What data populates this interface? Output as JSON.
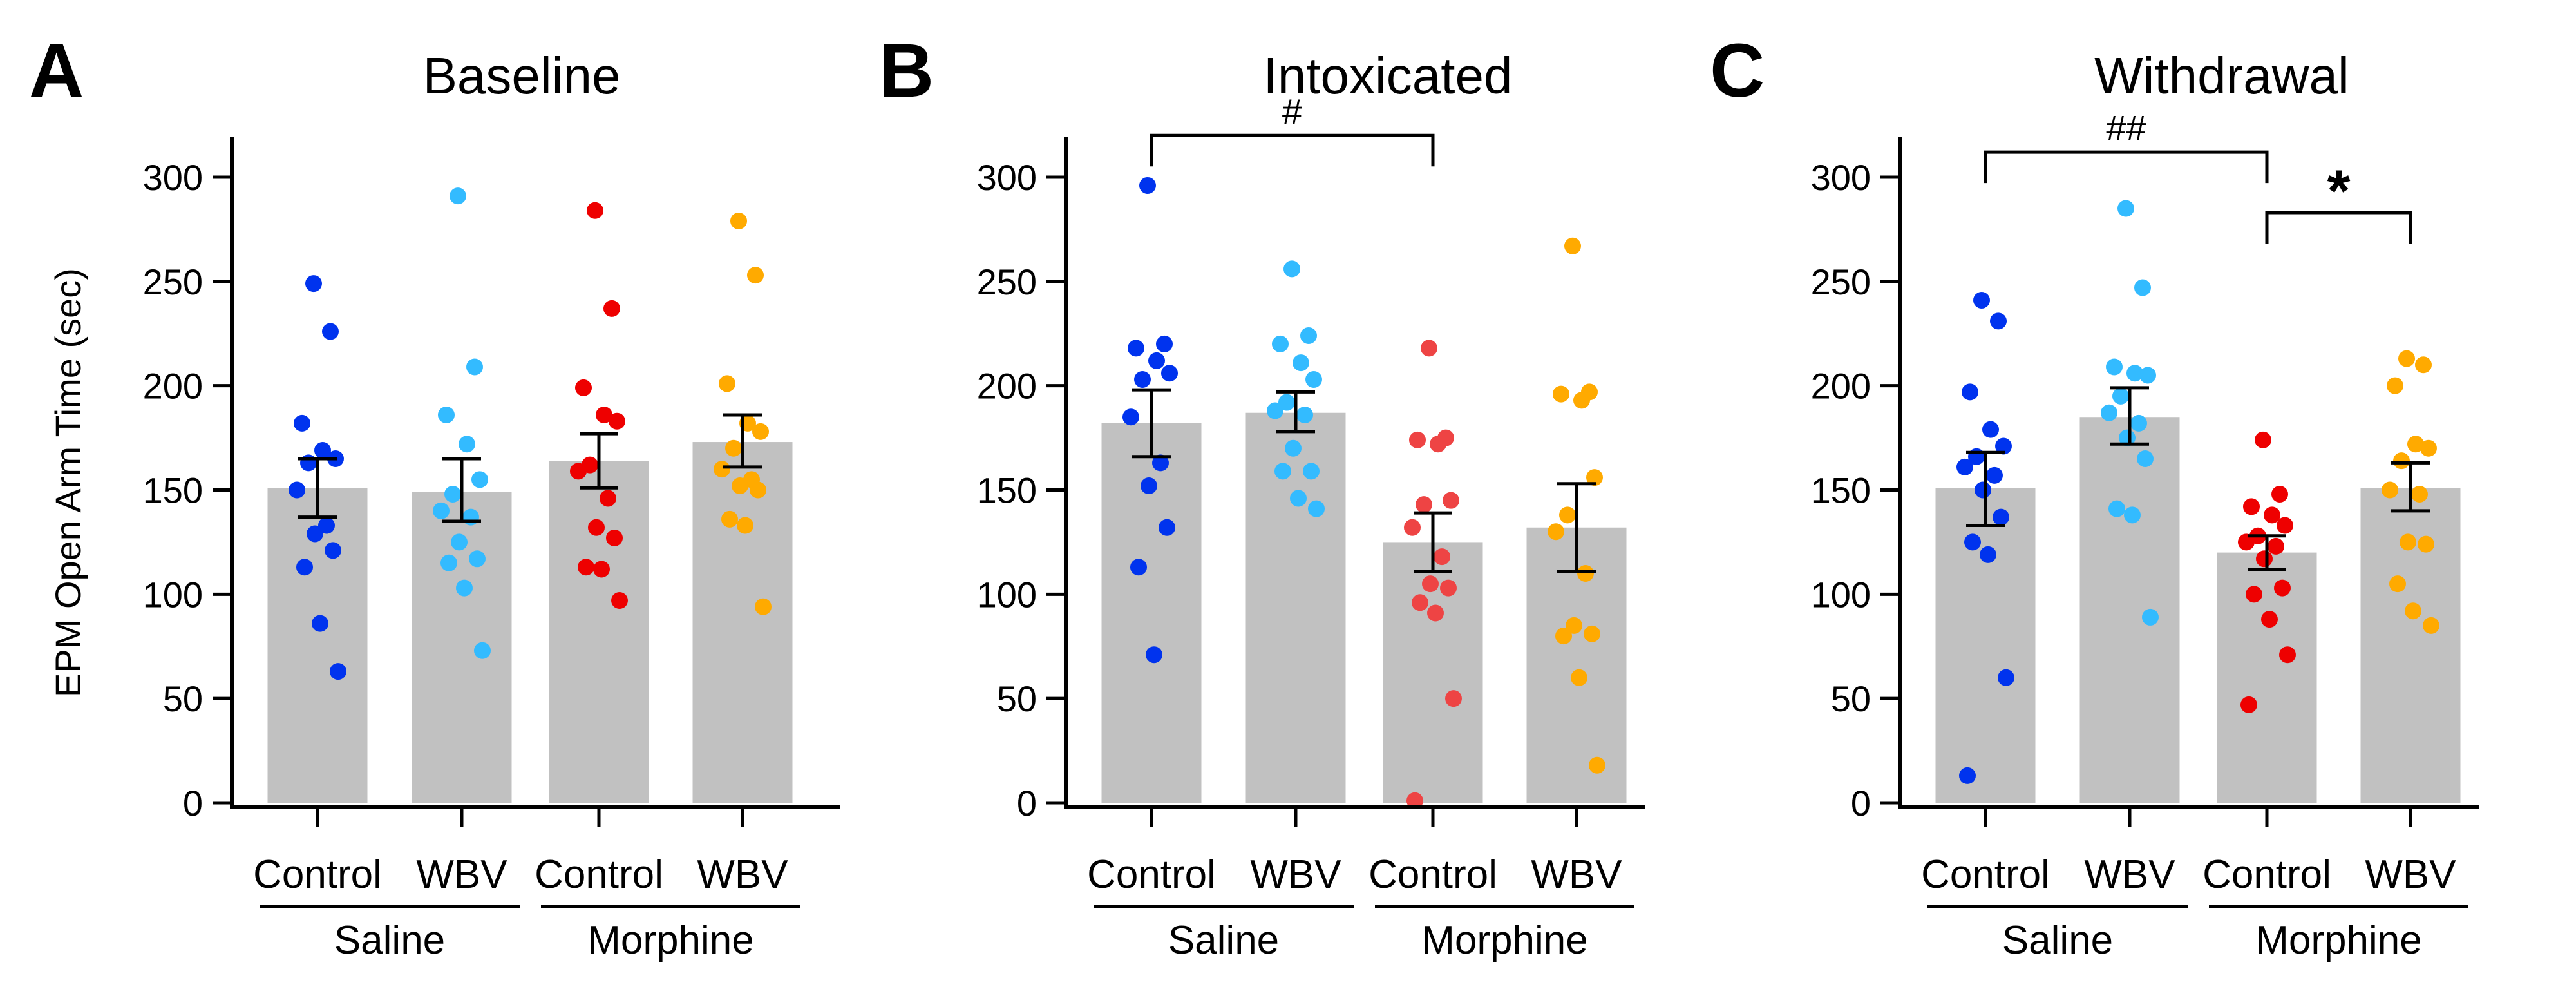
{
  "chart_data": [
    {
      "type": "bar",
      "letter": "A",
      "title": "Baseline",
      "ylabel": "EPM Open Arm Time (sec)",
      "ylim": [
        0,
        320
      ],
      "yticks": [
        0,
        50,
        100,
        150,
        200,
        250,
        300
      ],
      "categories": [
        "Control",
        "WBV",
        "Control",
        "WBV"
      ],
      "groups": [
        {
          "label": "Saline",
          "span": [
            0,
            1
          ]
        },
        {
          "label": "Morphine",
          "span": [
            2,
            3
          ]
        }
      ],
      "colors": [
        "#0033ee",
        "#33bbff",
        "#ee0000",
        "#ffaa00"
      ],
      "bars": [
        {
          "mean": 151,
          "sem_low": 137,
          "sem_high": 165,
          "points": [
            249,
            226,
            182,
            169,
            165,
            163,
            150,
            133,
            129,
            121,
            113,
            86,
            63
          ]
        },
        {
          "mean": 149,
          "sem_low": 135,
          "sem_high": 165,
          "points": [
            291,
            209,
            186,
            172,
            155,
            148,
            140,
            137,
            125,
            117,
            115,
            103,
            73
          ]
        },
        {
          "mean": 164,
          "sem_low": 151,
          "sem_high": 177,
          "points": [
            284,
            237,
            199,
            186,
            183,
            162,
            159,
            146,
            132,
            127,
            113,
            112,
            97
          ]
        },
        {
          "mean": 173,
          "sem_low": 161,
          "sem_high": 186,
          "points": [
            279,
            253,
            201,
            182,
            178,
            170,
            160,
            155,
            152,
            150,
            136,
            133,
            94
          ]
        }
      ],
      "significance": []
    },
    {
      "type": "bar",
      "letter": "B",
      "title": "Intoxicated",
      "ylabel": "",
      "ylim": [
        0,
        320
      ],
      "yticks": [
        0,
        50,
        100,
        150,
        200,
        250,
        300
      ],
      "categories": [
        "Control",
        "WBV",
        "Control",
        "WBV"
      ],
      "groups": [
        {
          "label": "Saline",
          "span": [
            0,
            1
          ]
        },
        {
          "label": "Morphine",
          "span": [
            2,
            3
          ]
        }
      ],
      "colors": [
        "#0033ee",
        "#33bbff",
        "#ee4444",
        "#ffaa00"
      ],
      "bars": [
        {
          "mean": 182,
          "sem_low": 166,
          "sem_high": 198,
          "points": [
            296,
            220,
            218,
            212,
            206,
            203,
            185,
            163,
            152,
            132,
            113,
            71
          ]
        },
        {
          "mean": 187,
          "sem_low": 178,
          "sem_high": 197,
          "points": [
            256,
            224,
            220,
            211,
            203,
            192,
            188,
            186,
            170,
            159,
            159,
            146,
            141
          ]
        },
        {
          "mean": 125,
          "sem_low": 111,
          "sem_high": 139,
          "points": [
            218,
            175,
            174,
            172,
            145,
            143,
            132,
            118,
            105,
            103,
            96,
            91,
            50,
            1
          ]
        },
        {
          "mean": 132,
          "sem_low": 111,
          "sem_high": 153,
          "points": [
            267,
            197,
            196,
            193,
            156,
            138,
            130,
            110,
            85,
            81,
            80,
            60,
            18
          ]
        }
      ],
      "significance": [
        {
          "from": 0,
          "to": 2,
          "label": "#",
          "y": 320
        }
      ]
    },
    {
      "type": "bar",
      "letter": "C",
      "title": "Withdrawal",
      "ylabel": "",
      "ylim": [
        0,
        320
      ],
      "yticks": [
        0,
        50,
        100,
        150,
        200,
        250,
        300
      ],
      "categories": [
        "Control",
        "WBV",
        "Control",
        "WBV"
      ],
      "groups": [
        {
          "label": "Saline",
          "span": [
            0,
            1
          ]
        },
        {
          "label": "Morphine",
          "span": [
            2,
            3
          ]
        }
      ],
      "colors": [
        "#0033ee",
        "#33bbff",
        "#ee0000",
        "#ffaa00"
      ],
      "bars": [
        {
          "mean": 151,
          "sem_low": 133,
          "sem_high": 168,
          "points": [
            241,
            231,
            197,
            179,
            171,
            166,
            161,
            157,
            150,
            137,
            125,
            119,
            60,
            13
          ]
        },
        {
          "mean": 185,
          "sem_low": 172,
          "sem_high": 199,
          "points": [
            285,
            247,
            209,
            206,
            205,
            195,
            187,
            182,
            175,
            165,
            141,
            138,
            89
          ]
        },
        {
          "mean": 120,
          "sem_low": 112,
          "sem_high": 128,
          "points": [
            174,
            148,
            142,
            138,
            133,
            128,
            125,
            123,
            117,
            103,
            100,
            88,
            71,
            47
          ]
        },
        {
          "mean": 151,
          "sem_low": 140,
          "sem_high": 163,
          "points": [
            213,
            210,
            200,
            172,
            170,
            164,
            150,
            148,
            125,
            124,
            105,
            92,
            85
          ]
        }
      ],
      "significance": [
        {
          "from": 0,
          "to": 2,
          "label": "##",
          "y": 312
        },
        {
          "from": 2,
          "to": 3,
          "label": "*",
          "y": 283
        }
      ]
    }
  ]
}
